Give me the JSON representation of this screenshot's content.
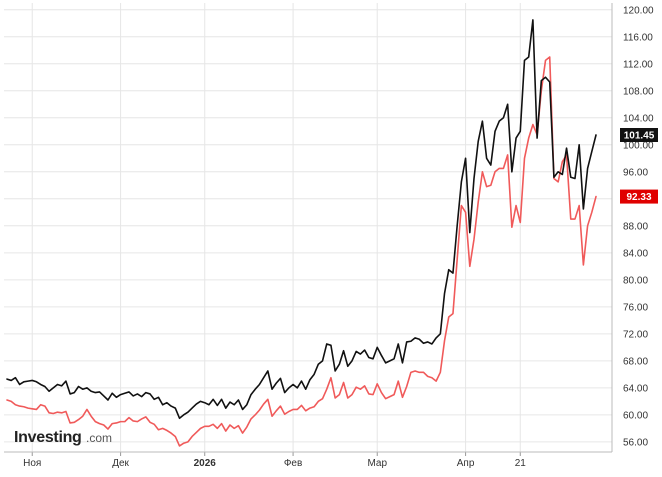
{
  "chart_data": {
    "type": "line",
    "ylim": [
      54.5,
      121
    ],
    "y_ticks": [
      56,
      60,
      64,
      68,
      72,
      76,
      80,
      84,
      88,
      92,
      96,
      100,
      104,
      108,
      112,
      116,
      120
    ],
    "y_tick_labels": [
      "56.00",
      "60.00",
      "64.00",
      "68.00",
      "72.00",
      "76.00",
      "80.00",
      "84.00",
      "88.00",
      "92.00",
      "96.00",
      "100.00",
      "104.00",
      "108.00",
      "112.00",
      "116.00",
      "120.00"
    ],
    "x_tick_labels": [
      {
        "label": "Ноя",
        "bold": false,
        "index": 6
      },
      {
        "label": "Дек",
        "bold": false,
        "index": 27
      },
      {
        "label": "2026",
        "bold": true,
        "index": 47
      },
      {
        "label": "Фев",
        "bold": false,
        "index": 68
      },
      {
        "label": "Мар",
        "bold": false,
        "index": 88
      },
      {
        "label": "Апр",
        "bold": false,
        "index": 109
      },
      {
        "label": "21",
        "bold": false,
        "index": 122
      }
    ],
    "grid": true,
    "colors": {
      "series_a": "#111111",
      "series_b": "#f05a5a",
      "grid": "#e6e6e6",
      "badge_a": "#111111",
      "badge_b": "#e00000"
    },
    "last_values": {
      "series_a": "101.45",
      "series_b": "92.33"
    },
    "series": [
      {
        "values": [
          65.3,
          65.1,
          65.5,
          64.5,
          64.9,
          65.0,
          65.1,
          64.9,
          64.5,
          64.2,
          63.5,
          64.0,
          64.5,
          64.3,
          65.0,
          63.1,
          63.3,
          64.2,
          63.8,
          64.0,
          63.5,
          63.3,
          63.4,
          62.8,
          62.2,
          63.2,
          62.6,
          63.0,
          63.2,
          63.4,
          62.8,
          63.1,
          62.7,
          63.3,
          63.1,
          62.3,
          62.6,
          61.5,
          61.8,
          61.3,
          61.0,
          59.5,
          60.0,
          60.4,
          61.0,
          61.6,
          62.0,
          61.8,
          61.5,
          62.3,
          61.4,
          62.3,
          61.0,
          61.9,
          61.5,
          62.2,
          60.8,
          61.5,
          63.0,
          63.8,
          64.5,
          65.5,
          66.5,
          63.8,
          64.7,
          65.4,
          63.3,
          64.0,
          64.5,
          64.0,
          65.0,
          63.8,
          65.2,
          66.0,
          67.5,
          68.0,
          70.5,
          70.3,
          66.5,
          67.5,
          69.5,
          67.2,
          68.0,
          69.4,
          69.0,
          69.6,
          68.5,
          68.3,
          70.0,
          68.8,
          67.7,
          68.0,
          68.3,
          70.5,
          67.7,
          70.8,
          70.9,
          71.4,
          71.2,
          70.6,
          70.8,
          70.5,
          71.4,
          72.0,
          78.0,
          81.5,
          81.0,
          88.0,
          94.5,
          98.0,
          87.0,
          95.0,
          100.5,
          103.5,
          98.0,
          97.0,
          102.0,
          103.5,
          104.0,
          106.0,
          96.0,
          101.0,
          102.0,
          112.5,
          113.0,
          118.5,
          101.0,
          109.5,
          110.0,
          109.3,
          95.2,
          96.0,
          95.6,
          99.5,
          95.2,
          95.0,
          100.0,
          90.5,
          96.5,
          99.0,
          101.45
        ],
        "last_label": "101.45"
      },
      {
        "values": [
          62.2,
          62.0,
          61.5,
          61.3,
          61.2,
          61.0,
          60.9,
          60.8,
          61.5,
          61.3,
          60.3,
          60.2,
          60.4,
          60.3,
          60.5,
          58.8,
          58.9,
          59.3,
          59.8,
          60.8,
          59.8,
          59.0,
          58.7,
          58.5,
          57.9,
          58.7,
          58.8,
          59.0,
          59.0,
          59.6,
          59.1,
          59.0,
          59.4,
          59.7,
          58.9,
          58.6,
          57.8,
          58.0,
          57.7,
          57.3,
          56.8,
          55.4,
          55.8,
          56.0,
          56.8,
          57.4,
          58.0,
          58.3,
          58.3,
          58.6,
          58.0,
          58.7,
          57.6,
          58.5,
          58.0,
          58.4,
          57.3,
          58.2,
          59.4,
          60.0,
          60.7,
          61.6,
          62.3,
          59.8,
          60.6,
          61.3,
          60.1,
          60.5,
          60.8,
          60.8,
          61.4,
          60.6,
          61.0,
          61.2,
          62.0,
          62.4,
          63.8,
          65.5,
          62.5,
          63.0,
          64.8,
          62.5,
          63.0,
          64.1,
          63.8,
          64.3,
          63.1,
          63.0,
          64.6,
          63.3,
          62.4,
          62.7,
          63.0,
          65.0,
          62.6,
          64.2,
          66.3,
          66.5,
          66.3,
          66.3,
          65.7,
          65.5,
          65.0,
          66.3,
          71.0,
          74.5,
          75.0,
          83.0,
          91.0,
          90.0,
          82.0,
          86.0,
          91.5,
          96.0,
          93.8,
          94.0,
          96.0,
          96.5,
          96.5,
          98.5,
          87.8,
          91.0,
          88.5,
          98.0,
          101.0,
          103.0,
          101.5,
          108.0,
          112.5,
          113.0,
          95.0,
          94.5,
          97.5,
          98.5,
          89.0,
          89.0,
          91.0,
          82.2,
          88.0,
          90.0,
          92.33
        ],
        "last_label": "92.33"
      }
    ],
    "logo": {
      "main": "Investing",
      "sub": ".com"
    }
  }
}
